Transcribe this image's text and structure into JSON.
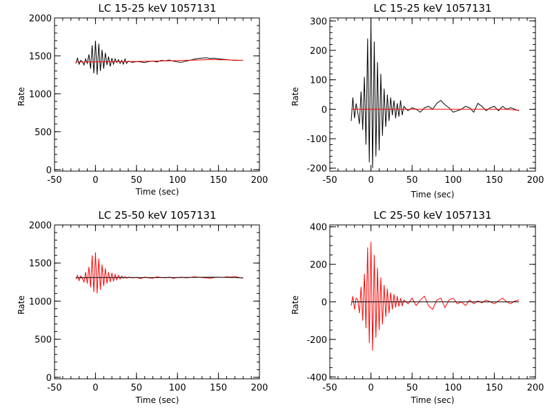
{
  "figure": {
    "background": "#ffffff",
    "axis_color": "#000000"
  },
  "chart_data": [
    {
      "type": "line",
      "title": "LC 15-25 keV  1057131",
      "xlabel": "Time (sec)",
      "ylabel": "Rate",
      "xlim": [
        -50,
        200
      ],
      "ylim": [
        -20,
        2000
      ],
      "xticks": [
        -50,
        0,
        50,
        100,
        150,
        200
      ],
      "yticks": [
        0,
        500,
        1000,
        1500,
        2000
      ],
      "xminor_step": 10,
      "yminor_step": 100,
      "grid": false,
      "series": [
        {
          "color": "#000000",
          "x": [
            -24,
            -22,
            -20,
            -18,
            -16,
            -14,
            -12,
            -10,
            -8,
            -6,
            -4,
            -2,
            0,
            2,
            4,
            6,
            8,
            10,
            12,
            14,
            16,
            18,
            20,
            22,
            24,
            26,
            28,
            30,
            32,
            34,
            36,
            38,
            40,
            45,
            50,
            55,
            60,
            65,
            70,
            75,
            80,
            85,
            90,
            95,
            100,
            105,
            110,
            115,
            120,
            125,
            130,
            135,
            140,
            145,
            150,
            155,
            160,
            165,
            170,
            175,
            180
          ],
          "y": [
            1400,
            1470,
            1390,
            1440,
            1420,
            1380,
            1460,
            1400,
            1520,
            1330,
            1640,
            1270,
            1700,
            1250,
            1660,
            1300,
            1580,
            1330,
            1540,
            1380,
            1490,
            1360,
            1470,
            1390,
            1460,
            1410,
            1450,
            1400,
            1440,
            1390,
            1460,
            1400,
            1430,
            1415,
            1425,
            1420,
            1410,
            1425,
            1430,
            1420,
            1440,
            1435,
            1445,
            1430,
            1420,
            1415,
            1430,
            1440,
            1455,
            1465,
            1470,
            1475,
            1465,
            1470,
            1460,
            1455,
            1450,
            1445,
            1440,
            1440,
            1440
          ]
        },
        {
          "color": "#ff0000",
          "x": [
            -24,
            0,
            20,
            40,
            60,
            80,
            100,
            120,
            140,
            160,
            180
          ],
          "y": [
            1420,
            1420,
            1423,
            1425,
            1428,
            1432,
            1438,
            1444,
            1450,
            1448,
            1440
          ]
        }
      ]
    },
    {
      "type": "line",
      "title": "LC 15-25 keV  1057131",
      "xlabel": "Time (sec)",
      "ylabel": "Rate",
      "xlim": [
        -50,
        200
      ],
      "ylim": [
        -210,
        310
      ],
      "xticks": [
        -50,
        0,
        50,
        100,
        150,
        200
      ],
      "yticks": [
        -200,
        -100,
        0,
        100,
        200,
        300
      ],
      "xminor_step": 10,
      "yminor_step": 20,
      "grid": false,
      "series": [
        {
          "color": "#000000",
          "x": [
            -24,
            -22,
            -20,
            -18,
            -16,
            -14,
            -12,
            -10,
            -8,
            -6,
            -4,
            -2,
            0,
            2,
            4,
            6,
            8,
            10,
            12,
            14,
            16,
            18,
            20,
            22,
            24,
            26,
            28,
            30,
            32,
            34,
            36,
            38,
            40,
            45,
            50,
            55,
            60,
            65,
            70,
            75,
            80,
            85,
            90,
            95,
            100,
            105,
            110,
            115,
            120,
            125,
            130,
            135,
            140,
            145,
            150,
            155,
            160,
            165,
            170,
            175,
            180
          ],
          "y": [
            -40,
            40,
            -30,
            20,
            -10,
            -50,
            60,
            -70,
            110,
            -120,
            240,
            -180,
            300,
            -200,
            230,
            -160,
            160,
            -140,
            120,
            -90,
            70,
            -60,
            50,
            -40,
            40,
            -20,
            30,
            -30,
            20,
            -25,
            30,
            -20,
            10,
            -5,
            5,
            0,
            -10,
            5,
            10,
            0,
            20,
            30,
            15,
            5,
            -10,
            -5,
            0,
            10,
            5,
            -10,
            20,
            10,
            -5,
            5,
            10,
            -5,
            10,
            0,
            5,
            0,
            -5
          ]
        },
        {
          "color": "#ff0000",
          "x": [
            -24,
            0,
            20,
            40,
            60,
            80,
            100,
            120,
            140,
            160,
            180
          ],
          "y": [
            0,
            0,
            0,
            0,
            0,
            0,
            0,
            0,
            0,
            0,
            -3
          ]
        }
      ]
    },
    {
      "type": "line",
      "title": "LC 25-50 keV  1057131",
      "xlabel": "Time (sec)",
      "ylabel": "Rate",
      "xlim": [
        -50,
        200
      ],
      "ylim": [
        -20,
        2000
      ],
      "xticks": [
        -50,
        0,
        50,
        100,
        150,
        200
      ],
      "yticks": [
        0,
        500,
        1000,
        1500,
        2000
      ],
      "xminor_step": 10,
      "yminor_step": 100,
      "grid": false,
      "series": [
        {
          "color": "#ff0000",
          "x": [
            -24,
            -22,
            -20,
            -18,
            -16,
            -14,
            -12,
            -10,
            -8,
            -6,
            -4,
            -2,
            0,
            2,
            4,
            6,
            8,
            10,
            12,
            14,
            16,
            18,
            20,
            22,
            24,
            26,
            28,
            30,
            32,
            34,
            36,
            38,
            40,
            45,
            50,
            55,
            60,
            65,
            70,
            75,
            80,
            85,
            90,
            95,
            100,
            105,
            110,
            115,
            120,
            125,
            130,
            135,
            140,
            145,
            150,
            155,
            160,
            165,
            170,
            175,
            180
          ],
          "y": [
            1290,
            1340,
            1270,
            1330,
            1300,
            1250,
            1380,
            1230,
            1450,
            1180,
            1600,
            1120,
            1640,
            1100,
            1560,
            1150,
            1480,
            1200,
            1430,
            1230,
            1380,
            1250,
            1370,
            1260,
            1350,
            1280,
            1340,
            1290,
            1330,
            1300,
            1320,
            1300,
            1315,
            1305,
            1310,
            1295,
            1315,
            1305,
            1300,
            1320,
            1310,
            1305,
            1315,
            1300,
            1310,
            1315,
            1305,
            1310,
            1320,
            1315,
            1310,
            1305,
            1300,
            1310,
            1315,
            1310,
            1320,
            1315,
            1325,
            1310,
            1300
          ]
        },
        {
          "color": "#000000",
          "x": [
            -24,
            0,
            20,
            40,
            60,
            80,
            100,
            120,
            140,
            160,
            180
          ],
          "y": [
            1305,
            1310,
            1310,
            1310,
            1310,
            1310,
            1310,
            1312,
            1314,
            1312,
            1305
          ]
        }
      ]
    },
    {
      "type": "line",
      "title": "LC 25-50 keV  1057131",
      "xlabel": "Time (sec)",
      "ylabel": "Rate",
      "xlim": [
        -50,
        200
      ],
      "ylim": [
        -410,
        410
      ],
      "xticks": [
        -50,
        0,
        50,
        100,
        150,
        200
      ],
      "yticks": [
        -400,
        -200,
        0,
        200,
        400
      ],
      "xminor_step": 10,
      "yminor_step": 50,
      "grid": false,
      "series": [
        {
          "color": "#ff0000",
          "x": [
            -24,
            -22,
            -20,
            -18,
            -16,
            -14,
            -12,
            -10,
            -8,
            -6,
            -4,
            -2,
            0,
            2,
            4,
            6,
            8,
            10,
            12,
            14,
            16,
            18,
            20,
            22,
            24,
            26,
            28,
            30,
            32,
            34,
            36,
            38,
            40,
            45,
            50,
            55,
            60,
            65,
            70,
            75,
            80,
            85,
            90,
            95,
            100,
            105,
            110,
            115,
            120,
            125,
            130,
            135,
            140,
            145,
            150,
            155,
            160,
            165,
            170,
            175,
            180
          ],
          "y": [
            -20,
            30,
            -40,
            20,
            10,
            -60,
            80,
            -100,
            150,
            -140,
            290,
            -220,
            320,
            -260,
            250,
            -190,
            180,
            -150,
            130,
            -120,
            90,
            -80,
            70,
            -60,
            50,
            -40,
            40,
            -30,
            30,
            -25,
            20,
            -20,
            10,
            -10,
            20,
            -20,
            10,
            30,
            -20,
            -40,
            10,
            20,
            -30,
            10,
            20,
            -10,
            0,
            -20,
            10,
            -10,
            5,
            -5,
            10,
            0,
            -10,
            5,
            20,
            0,
            -10,
            5,
            10
          ]
        },
        {
          "color": "#000000",
          "x": [
            -24,
            0,
            20,
            40,
            60,
            80,
            100,
            120,
            140,
            160,
            180
          ],
          "y": [
            0,
            0,
            0,
            0,
            0,
            0,
            0,
            0,
            0,
            0,
            0
          ]
        }
      ]
    }
  ]
}
